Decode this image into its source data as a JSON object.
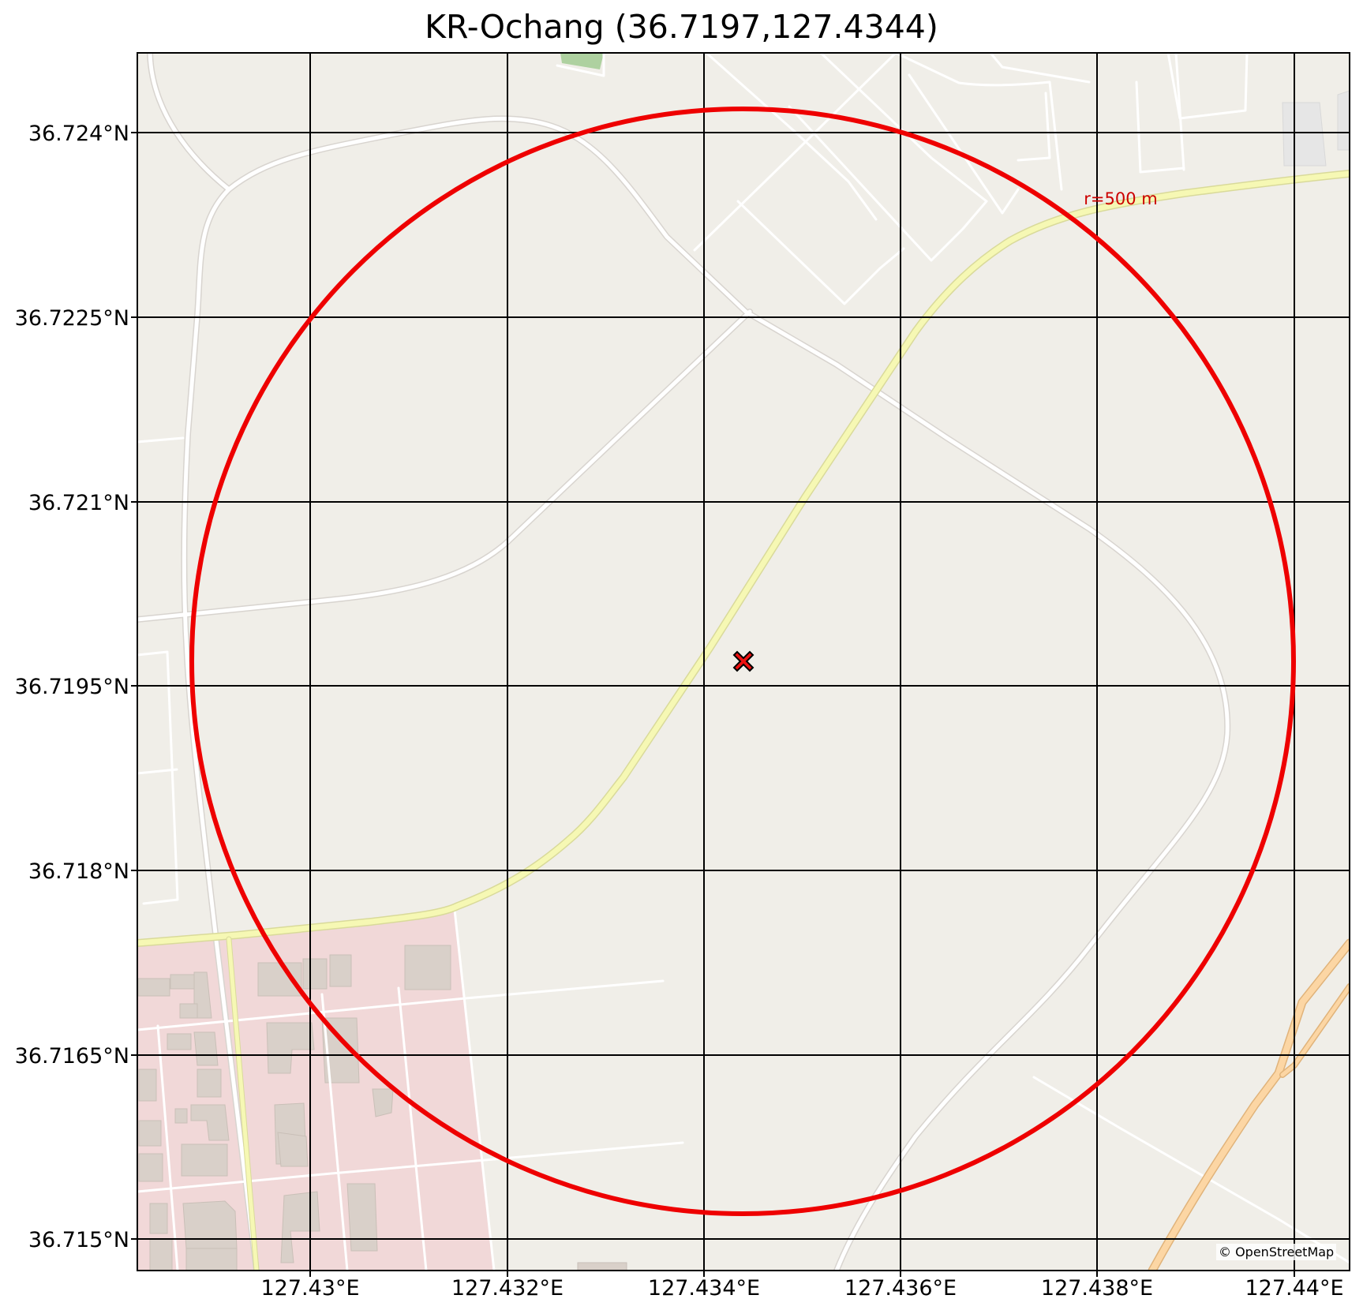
{
  "title": "KR-Ochang (36.7197,127.4344)",
  "center": {
    "lat": 36.7197,
    "lon": 127.4344
  },
  "circle": {
    "radius_m": 500,
    "label": "r=500 m",
    "color": "#ee0000"
  },
  "axes": {
    "x_ticks": [
      "127.43°E",
      "127.432°E",
      "127.434°E",
      "127.436°E",
      "127.438°E",
      "127.44°E"
    ],
    "y_ticks": [
      "36.724°N",
      "36.7225°N",
      "36.721°N",
      "36.7195°N",
      "36.718°N",
      "36.7165°N",
      "36.715°N"
    ]
  },
  "attribution": "© OpenStreetMap",
  "colors": {
    "land": "#f0eee8",
    "road_minor": "#ffffff",
    "road_secondary": "#f6f8b4",
    "road_primary": "#fcd6a4",
    "residential": "#f1d8d8",
    "building": "#d9d0c9",
    "park": "#aed1a0",
    "grid": "#000000"
  }
}
